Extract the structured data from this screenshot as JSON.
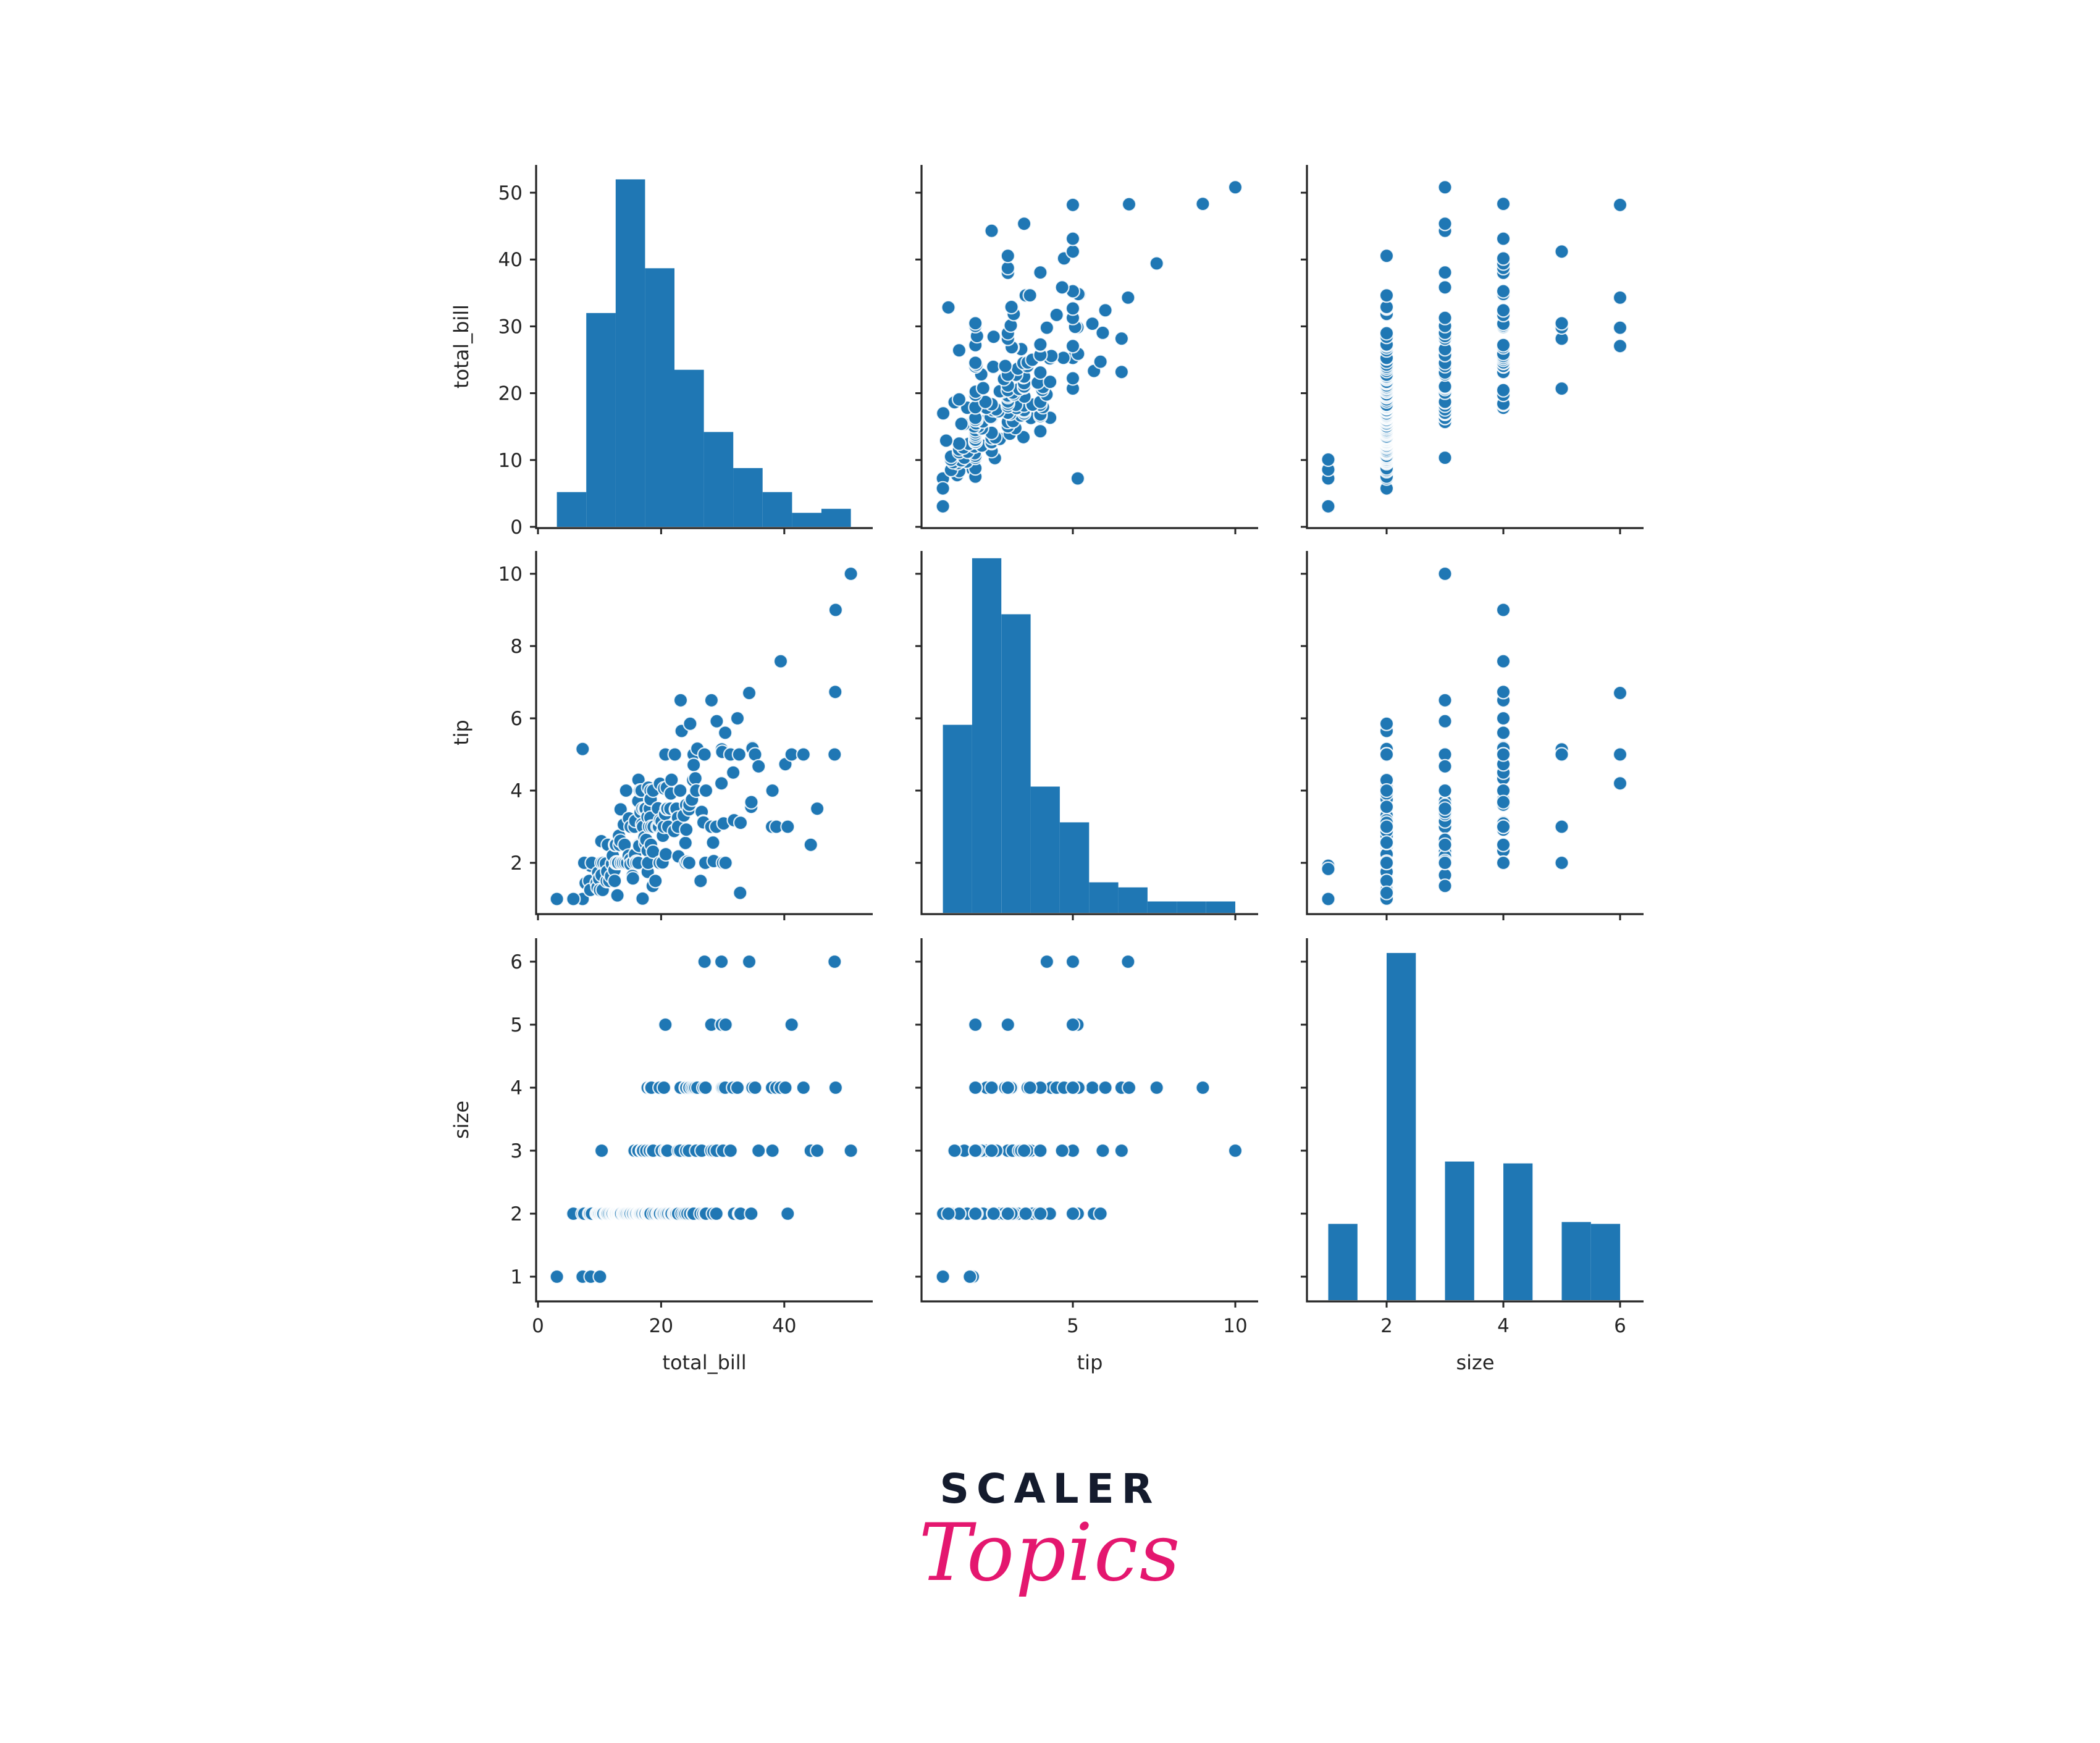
{
  "figure": {
    "variables": [
      "total_bill",
      "tip",
      "size"
    ],
    "point_color": "#1f77b4",
    "point_edge_color": "#ffffff",
    "bar_color": "#1f77b4",
    "axis_color": "#262626"
  },
  "logo": {
    "line1": "SCALER",
    "line2": "Topics",
    "line1_color": "#141b2d",
    "line2_color": "#e4176f"
  },
  "chart_data": {
    "type": "scatter",
    "title": "",
    "subtype": "pairplot",
    "grid": false,
    "variables": [
      "total_bill",
      "tip",
      "size"
    ],
    "axes": {
      "total_bill": {
        "label": "total_bill",
        "ticks": [
          0,
          10,
          20,
          30,
          40,
          50
        ],
        "xticks": [
          0,
          20,
          40
        ],
        "range": [
          -0.3,
          54.5
        ],
        "yrange": [
          -0.3,
          54.0
        ]
      },
      "tip": {
        "label": "tip",
        "yticks": [
          2,
          4,
          6,
          8,
          10
        ],
        "xticks": [
          5,
          10
        ],
        "range": [
          0.34,
          10.7
        ],
        "yrange": [
          0.5,
          10.7
        ]
      },
      "size": {
        "label": "size",
        "yticks": [
          1,
          2,
          3,
          4,
          5,
          6
        ],
        "xticks": [
          2,
          4,
          6
        ],
        "range": [
          0.63,
          6.4
        ],
        "yrange": [
          0.6,
          6.4
        ]
      }
    },
    "diagonal_histograms": {
      "total_bill": {
        "bin_edges": [
          3.07,
          7.84,
          12.62,
          17.39,
          22.16,
          26.94,
          31.71,
          36.48,
          41.26,
          46.03,
          50.81
        ],
        "heights_in_axis_units": [
          5.2,
          32.0,
          52.0,
          38.7,
          23.5,
          14.2,
          8.8,
          5.2,
          2.1,
          2.7
        ]
      },
      "tip": {
        "bin_edges": [
          1.0,
          1.9,
          2.8,
          3.7,
          4.6,
          5.5,
          6.4,
          7.3,
          8.2,
          9.1,
          10.0
        ],
        "heights_in_axis_units": [
          5.54,
          10.15,
          8.6,
          3.83,
          2.84,
          1.18,
          1.04,
          0.65,
          0.65,
          0.65
        ]
      },
      "size": {
        "bin_edges": [
          1.0,
          1.5,
          2.0,
          2.5,
          3.0,
          3.5,
          4.0,
          4.5,
          5.0,
          5.5,
          6.0
        ],
        "heights_in_axis_units": [
          1.83,
          0,
          6.13,
          0,
          2.82,
          0,
          2.79,
          0,
          1.86,
          1.83
        ]
      }
    },
    "points": [
      [
        3.07,
        1.0,
        1
      ],
      [
        7.25,
        1.0,
        1
      ],
      [
        8.58,
        1.92,
        1
      ],
      [
        10.07,
        1.83,
        1
      ],
      [
        7.74,
        1.44,
        2
      ],
      [
        5.75,
        1.0,
        2
      ],
      [
        7.25,
        5.15,
        2
      ],
      [
        7.51,
        2.0,
        2
      ],
      [
        8.35,
        1.5,
        2
      ],
      [
        8.51,
        1.25,
        2
      ],
      [
        8.77,
        2.0,
        2
      ],
      [
        9.55,
        1.45,
        2
      ],
      [
        9.68,
        1.32,
        2
      ],
      [
        9.78,
        1.73,
        2
      ],
      [
        9.94,
        1.56,
        2
      ],
      [
        10.07,
        1.25,
        2
      ],
      [
        10.29,
        2.6,
        2
      ],
      [
        10.33,
        2.0,
        2
      ],
      [
        10.34,
        1.66,
        3
      ],
      [
        10.51,
        1.25,
        2
      ],
      [
        10.63,
        2.0,
        2
      ],
      [
        11.02,
        1.98,
        2
      ],
      [
        11.17,
        1.5,
        2
      ],
      [
        11.24,
        1.76,
        2
      ],
      [
        11.35,
        2.5,
        2
      ],
      [
        11.59,
        1.5,
        2
      ],
      [
        11.87,
        1.63,
        2
      ],
      [
        12.02,
        1.97,
        2
      ],
      [
        12.16,
        2.2,
        2
      ],
      [
        12.43,
        1.8,
        2
      ],
      [
        12.46,
        1.5,
        2
      ],
      [
        12.54,
        2.5,
        2
      ],
      [
        12.66,
        2.5,
        2
      ],
      [
        12.69,
        2.0,
        2
      ],
      [
        12.74,
        2.01,
        2
      ],
      [
        12.9,
        1.1,
        2
      ],
      [
        13.0,
        2.0,
        2
      ],
      [
        13.03,
        2.0,
        2
      ],
      [
        13.16,
        2.75,
        2
      ],
      [
        13.27,
        2.5,
        2
      ],
      [
        13.39,
        2.61,
        2
      ],
      [
        13.42,
        3.48,
        2
      ],
      [
        13.51,
        2.0,
        2
      ],
      [
        13.81,
        2.0,
        2
      ],
      [
        13.94,
        3.06,
        2
      ],
      [
        14.07,
        2.5,
        2
      ],
      [
        14.15,
        2.0,
        2
      ],
      [
        14.31,
        4.0,
        2
      ],
      [
        14.48,
        2.0,
        2
      ],
      [
        14.73,
        2.2,
        2
      ],
      [
        14.78,
        3.23,
        2
      ],
      [
        15.01,
        2.09,
        2
      ],
      [
        15.04,
        1.96,
        2
      ],
      [
        15.06,
        3.0,
        2
      ],
      [
        15.36,
        1.64,
        2
      ],
      [
        15.42,
        1.57,
        2
      ],
      [
        15.48,
        2.02,
        2
      ],
      [
        15.69,
        3.0,
        3
      ],
      [
        15.77,
        2.23,
        2
      ],
      [
        15.81,
        3.16,
        2
      ],
      [
        15.98,
        2.03,
        2
      ],
      [
        16.0,
        2.0,
        2
      ],
      [
        16.27,
        2.5,
        2
      ],
      [
        16.29,
        3.71,
        3
      ],
      [
        16.31,
        2.0,
        3
      ],
      [
        16.32,
        4.3,
        2
      ],
      [
        16.4,
        2.5,
        2
      ],
      [
        16.45,
        2.47,
        2
      ],
      [
        16.58,
        4.0,
        2
      ],
      [
        16.66,
        3.4,
        2
      ],
      [
        16.82,
        4.0,
        2
      ],
      [
        16.93,
        3.07,
        3
      ],
      [
        16.97,
        3.5,
        3
      ],
      [
        16.99,
        1.01,
        2
      ],
      [
        17.07,
        3.0,
        3
      ],
      [
        17.29,
        2.71,
        2
      ],
      [
        17.31,
        3.5,
        2
      ],
      [
        17.46,
        2.54,
        2
      ],
      [
        17.47,
        3.5,
        2
      ],
      [
        17.59,
        2.64,
        3
      ],
      [
        17.78,
        3.27,
        2
      ],
      [
        17.81,
        2.34,
        4
      ],
      [
        17.82,
        1.75,
        2
      ],
      [
        17.89,
        2.0,
        2
      ],
      [
        17.92,
        4.08,
        2
      ],
      [
        18.04,
        3.0,
        2
      ],
      [
        18.15,
        3.5,
        3
      ],
      [
        18.24,
        3.76,
        2
      ],
      [
        18.26,
        3.25,
        2
      ],
      [
        18.28,
        4.0,
        2
      ],
      [
        18.29,
        3.76,
        4
      ],
      [
        18.35,
        2.5,
        4
      ],
      [
        18.43,
        3.0,
        4
      ],
      [
        18.64,
        1.36,
        3
      ],
      [
        18.69,
        2.31,
        3
      ],
      [
        18.71,
        4.0,
        3
      ],
      [
        18.78,
        3.0,
        2
      ],
      [
        19.08,
        1.5,
        2
      ],
      [
        19.44,
        3.0,
        2
      ],
      [
        19.49,
        3.51,
        2
      ],
      [
        19.65,
        3.0,
        2
      ],
      [
        19.77,
        2.0,
        4
      ],
      [
        19.81,
        4.19,
        2
      ],
      [
        19.82,
        3.18,
        2
      ],
      [
        20.08,
        3.15,
        3
      ],
      [
        20.23,
        2.01,
        2
      ],
      [
        20.27,
        2.83,
        2
      ],
      [
        20.29,
        2.75,
        2
      ],
      [
        20.45,
        3.0,
        4
      ],
      [
        20.49,
        4.06,
        2
      ],
      [
        20.65,
        3.35,
        3
      ],
      [
        20.69,
        5.0,
        5
      ],
      [
        20.76,
        2.24,
        2
      ],
      [
        20.9,
        3.5,
        3
      ],
      [
        20.92,
        4.08,
        2
      ],
      [
        21.01,
        3.5,
        3
      ],
      [
        21.16,
        3.0,
        2
      ],
      [
        21.5,
        3.5,
        2
      ],
      [
        21.58,
        3.92,
        2
      ],
      [
        21.7,
        4.3,
        2
      ],
      [
        22.12,
        2.88,
        2
      ],
      [
        22.23,
        5.0,
        2
      ],
      [
        22.42,
        3.48,
        2
      ],
      [
        22.49,
        3.5,
        2
      ],
      [
        22.75,
        3.25,
        2
      ],
      [
        22.76,
        3.0,
        2
      ],
      [
        22.82,
        2.18,
        3
      ],
      [
        23.1,
        4.0,
        3
      ],
      [
        23.17,
        6.5,
        4
      ],
      [
        23.33,
        5.65,
        2
      ],
      [
        23.68,
        3.31,
        2
      ],
      [
        23.95,
        2.55,
        2
      ],
      [
        24.01,
        2.0,
        4
      ],
      [
        24.06,
        3.6,
        3
      ],
      [
        24.08,
        2.92,
        4
      ],
      [
        24.27,
        2.03,
        2
      ],
      [
        24.52,
        3.48,
        3
      ],
      [
        24.55,
        2.0,
        4
      ],
      [
        24.59,
        3.61,
        4
      ],
      [
        24.71,
        5.85,
        2
      ],
      [
        25.0,
        3.75,
        4
      ],
      [
        25.21,
        4.29,
        2
      ],
      [
        25.28,
        5.0,
        2
      ],
      [
        25.29,
        4.71,
        4
      ],
      [
        25.56,
        4.34,
        4
      ],
      [
        25.71,
        4.0,
        3
      ],
      [
        25.89,
        5.16,
        4
      ],
      [
        26.41,
        1.5,
        2
      ],
      [
        26.59,
        3.41,
        3
      ],
      [
        26.86,
        3.14,
        2
      ],
      [
        26.88,
        3.12,
        4
      ],
      [
        27.05,
        5.0,
        6
      ],
      [
        27.18,
        2.0,
        2
      ],
      [
        27.2,
        4.0,
        4
      ],
      [
        27.28,
        4.0,
        2
      ],
      [
        28.15,
        3.0,
        5
      ],
      [
        28.17,
        6.5,
        3
      ],
      [
        28.44,
        2.56,
        2
      ],
      [
        28.55,
        2.05,
        3
      ],
      [
        28.97,
        3.0,
        2
      ],
      [
        29.03,
        5.92,
        3
      ],
      [
        29.8,
        4.2,
        6
      ],
      [
        29.85,
        5.14,
        5
      ],
      [
        29.93,
        5.07,
        4
      ],
      [
        30.06,
        2.0,
        3
      ],
      [
        30.14,
        3.09,
        4
      ],
      [
        30.4,
        5.6,
        4
      ],
      [
        30.46,
        2.0,
        5
      ],
      [
        31.27,
        5.0,
        3
      ],
      [
        31.71,
        4.5,
        4
      ],
      [
        31.85,
        3.18,
        2
      ],
      [
        32.4,
        6.0,
        4
      ],
      [
        32.68,
        5.0,
        2
      ],
      [
        32.83,
        1.17,
        2
      ],
      [
        32.9,
        3.11,
        2
      ],
      [
        34.3,
        6.7,
        6
      ],
      [
        34.63,
        3.55,
        2
      ],
      [
        34.65,
        3.68,
        4
      ],
      [
        34.81,
        5.2,
        4
      ],
      [
        34.83,
        5.17,
        4
      ],
      [
        35.26,
        5.0,
        4
      ],
      [
        35.83,
        4.67,
        3
      ],
      [
        38.01,
        3.0,
        4
      ],
      [
        38.07,
        4.0,
        3
      ],
      [
        38.73,
        3.0,
        4
      ],
      [
        39.42,
        7.58,
        4
      ],
      [
        40.17,
        4.73,
        4
      ],
      [
        40.55,
        3.0,
        2
      ],
      [
        41.19,
        5.0,
        5
      ],
      [
        43.11,
        5.0,
        4
      ],
      [
        44.3,
        2.5,
        3
      ],
      [
        45.35,
        3.5,
        3
      ],
      [
        48.17,
        5.0,
        6
      ],
      [
        48.27,
        6.73,
        4
      ],
      [
        48.33,
        9.0,
        4
      ],
      [
        50.81,
        10.0,
        3
      ]
    ]
  }
}
